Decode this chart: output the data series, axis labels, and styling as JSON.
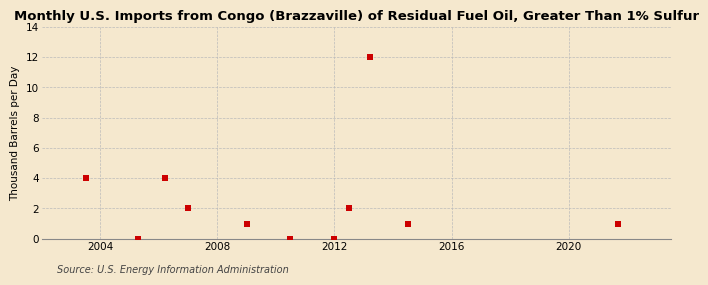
{
  "title": "Monthly U.S. Imports from Congo (Brazzaville) of Residual Fuel Oil, Greater Than 1% Sulfur",
  "ylabel": "Thousand Barrels per Day",
  "source": "Source: U.S. Energy Information Administration",
  "background_color": "#f5e8ce",
  "data_points": [
    [
      2003.5,
      4
    ],
    [
      2005.3,
      0
    ],
    [
      2006.2,
      4
    ],
    [
      2007.0,
      2
    ],
    [
      2009.0,
      1
    ],
    [
      2010.5,
      0
    ],
    [
      2012.0,
      0
    ],
    [
      2012.5,
      2
    ],
    [
      2013.2,
      12
    ],
    [
      2014.5,
      1
    ],
    [
      2021.7,
      1
    ]
  ],
  "marker_color": "#cc0000",
  "marker_size": 4,
  "xlim": [
    2002.0,
    2023.5
  ],
  "ylim": [
    0,
    14
  ],
  "yticks": [
    0,
    2,
    4,
    6,
    8,
    10,
    12,
    14
  ],
  "xticks": [
    2004,
    2008,
    2012,
    2016,
    2020
  ],
  "grid_color": "#bbbbbb",
  "title_fontsize": 9.5,
  "ylabel_fontsize": 7.5,
  "tick_fontsize": 7.5,
  "source_fontsize": 7.0
}
